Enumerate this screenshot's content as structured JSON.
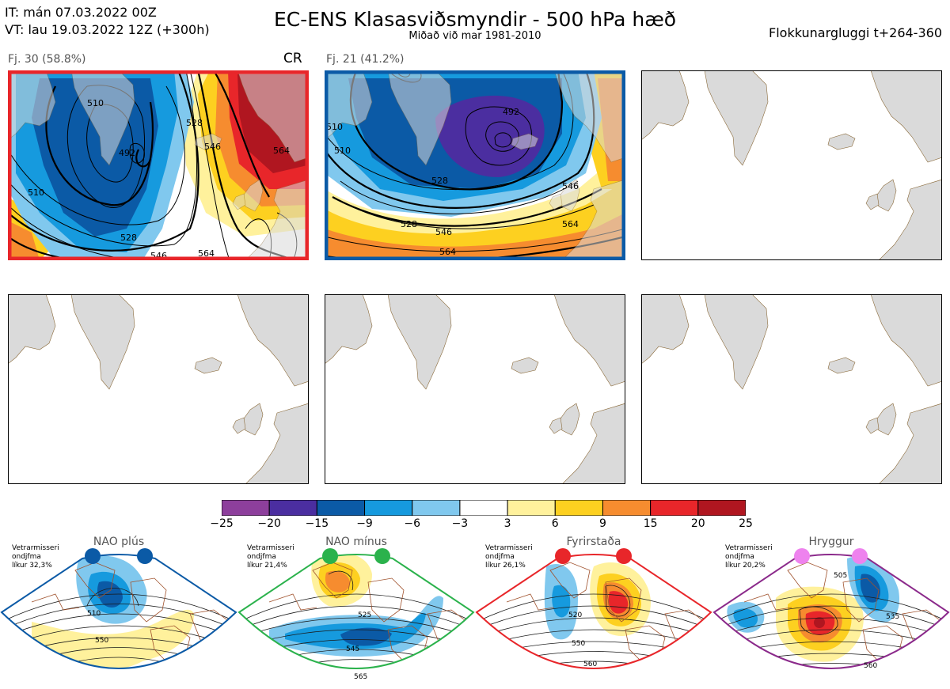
{
  "header": {
    "it_line": "IT: mán 07.03.2022 00Z",
    "vt_line": "VT: lau 19.03.2022 12Z  (+300h)",
    "title": "EC-ENS Klasasviðsmyndir - 500 hPa hæð",
    "subtitle": "Miðað við mar 1981-2010",
    "window": "Flokkunargluggi t+264-360"
  },
  "panels": [
    {
      "label": "Fj. 30 (58.8%)",
      "tag": "CR",
      "border": "#e8262a",
      "contours": [
        "510",
        "492",
        "528",
        "546",
        "564",
        "528",
        "546",
        "564",
        "510"
      ]
    },
    {
      "label": "Fj. 21 (41.2%)",
      "tag": "",
      "border": "#0b5aa6",
      "contours": [
        "492",
        "510",
        "528",
        "546",
        "564",
        "528",
        "546",
        "564",
        "510"
      ]
    }
  ],
  "colorbar": {
    "colors": [
      "#8d3f9c",
      "#4b2ea0",
      "#0b5aa6",
      "#169ade",
      "#80c8ee",
      "#ffffff",
      "#fff19c",
      "#fdd020",
      "#f68c2f",
      "#e8262a",
      "#b01620"
    ],
    "ticks": [
      "−25",
      "−20",
      "−15",
      "−9",
      "−6",
      "−3",
      "3",
      "6",
      "9",
      "15",
      "20",
      "25"
    ]
  },
  "regimes": [
    {
      "title": "NAO plús",
      "note": [
        "Vetrarmisseri",
        "ondjfma",
        "líkur 32,3%"
      ],
      "color": "#0b5aa6",
      "labels": [
        "510",
        "550"
      ]
    },
    {
      "title": "NAO mínus",
      "note": [
        "Vetrarmisseri",
        "ondjfma",
        "líkur 21,4%"
      ],
      "color": "#2bb24c",
      "labels": [
        "525",
        "545",
        "565"
      ]
    },
    {
      "title": "Fyrirstaða",
      "note": [
        "Vetrarmisseri",
        "ondjfma",
        "líkur 26,1%"
      ],
      "color": "#e8262a",
      "labels": [
        "520",
        "550",
        "560"
      ]
    },
    {
      "title": "Hryggur",
      "note": [
        "Vetrarmisseri",
        "ondjfma",
        "líkur 20,2%"
      ],
      "color": "#ee82ee",
      "labels": [
        "505",
        "535",
        "560"
      ]
    }
  ]
}
